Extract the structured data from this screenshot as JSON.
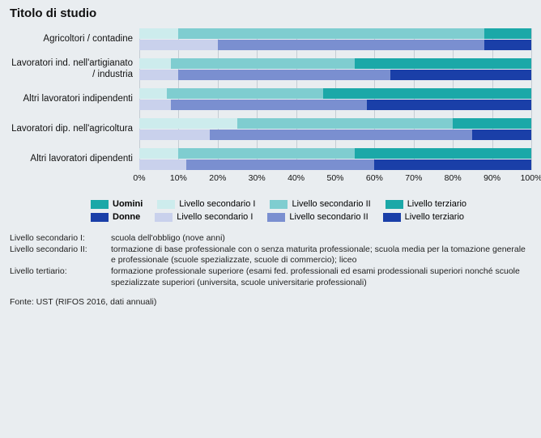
{
  "title": "Titolo di studio",
  "chart": {
    "type": "stacked-bar-horizontal-grouped",
    "background_color": "#e9edf0",
    "grid_color": "#c5cdd4",
    "x_axis": {
      "min": 0,
      "max": 100,
      "step": 10,
      "suffix": "%",
      "ticks": [
        0,
        10,
        20,
        30,
        40,
        50,
        60,
        70,
        80,
        90,
        100
      ]
    },
    "colors": {
      "uomini_s1": "#cdeced",
      "uomini_s2": "#7fcdd0",
      "uomini_t": "#1ba8a8",
      "donne_s1": "#c9d1ec",
      "donne_s2": "#7a8fd0",
      "donne_t": "#1a3fa8"
    },
    "categories": [
      {
        "label": "Agricoltori / contadine",
        "uomini": {
          "s1": 10,
          "s2": 78,
          "t": 12
        },
        "donne": {
          "s1": 20,
          "s2": 68,
          "t": 12
        }
      },
      {
        "label": "Lavoratori ind. nell'artigianato / industria",
        "uomini": {
          "s1": 8,
          "s2": 47,
          "t": 45
        },
        "donne": {
          "s1": 10,
          "s2": 54,
          "t": 36
        }
      },
      {
        "label": "Altri lavoratori indipendenti",
        "uomini": {
          "s1": 7,
          "s2": 40,
          "t": 53
        },
        "donne": {
          "s1": 8,
          "s2": 50,
          "t": 42
        }
      },
      {
        "label": "Lavoratori dip. nell'agricoltura",
        "uomini": {
          "s1": 25,
          "s2": 55,
          "t": 20
        },
        "donne": {
          "s1": 18,
          "s2": 67,
          "t": 15
        }
      },
      {
        "label": "Altri lavoratori dipendenti",
        "uomini": {
          "s1": 10,
          "s2": 45,
          "t": 45
        },
        "donne": {
          "s1": 12,
          "s2": 48,
          "t": 40
        }
      }
    ]
  },
  "legend": {
    "rows": [
      {
        "head": "Uomini",
        "items": [
          {
            "color_key": "uomini_s1",
            "label": "Livello secondario I"
          },
          {
            "color_key": "uomini_s2",
            "label": "Livello secondario II"
          },
          {
            "color_key": "uomini_t",
            "label": "Livello terziario"
          }
        ]
      },
      {
        "head": "Donne",
        "items": [
          {
            "color_key": "donne_s1",
            "label": "Livello secondario I"
          },
          {
            "color_key": "donne_s2",
            "label": "Livello secondario II"
          },
          {
            "color_key": "donne_t",
            "label": "Livello terziario"
          }
        ]
      }
    ],
    "head_colors": {
      "Uomini": "#1ba8a8",
      "Donne": "#1a3fa8"
    }
  },
  "definitions": [
    {
      "term": "Livello secondario I:",
      "desc": "scuola dell'obbligo (nove anni)"
    },
    {
      "term": "Livello secondario II:",
      "desc": "tormazione di base professionale con o senza maturita professionale; scuola media per la tomazione generale e professionale (scuole spezializzate, scuole di commercio); liceo"
    },
    {
      "term": "Livello tertiario:",
      "desc": "formazione professionale superiore (esami fed. professionali ed esami prodessionali superiori nonché scuole spezializzate superiori (universita, scuole universitarie professionali)"
    }
  ],
  "source": "Fonte: UST (RIFOS 2016, dati annuali)"
}
